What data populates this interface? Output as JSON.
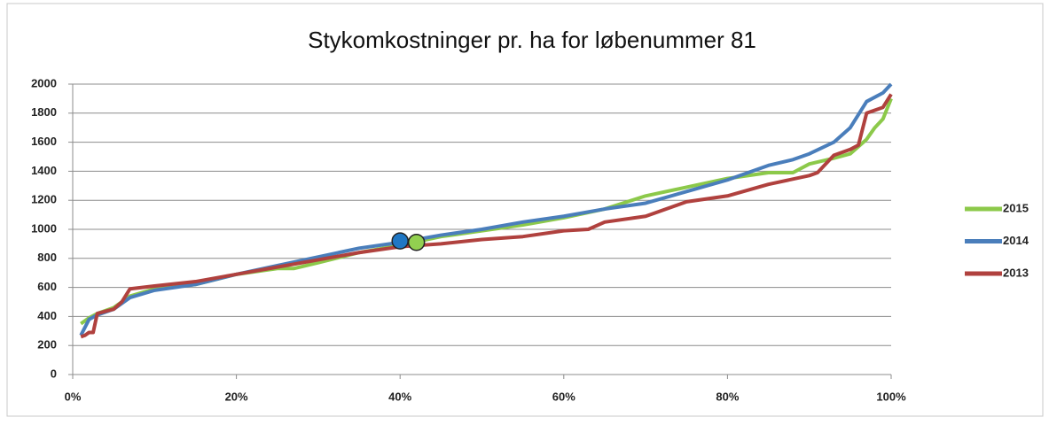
{
  "chart_data": {
    "type": "line",
    "title": "Stykomkostninger pr. ha for løbenummer 81",
    "xlim": [
      0,
      100
    ],
    "xticks": [
      {
        "value": 0,
        "label": "0%"
      },
      {
        "value": 20,
        "label": "20%"
      },
      {
        "value": 40,
        "label": "40%"
      },
      {
        "value": 60,
        "label": "60%"
      },
      {
        "value": 80,
        "label": "80%"
      },
      {
        "value": 100,
        "label": "100%"
      }
    ],
    "ylim": [
      0,
      2000
    ],
    "yticks": [
      0,
      200,
      400,
      600,
      800,
      1000,
      1200,
      1400,
      1600,
      1800,
      2000
    ],
    "grid": true,
    "legend": "right",
    "series": [
      {
        "name": "2015",
        "color": "#8cc94a",
        "x": [
          1,
          2,
          3,
          5,
          7,
          10,
          15,
          20,
          25,
          27,
          30,
          35,
          40,
          45,
          50,
          55,
          60,
          65,
          70,
          75,
          80,
          85,
          88,
          90,
          93,
          95,
          97,
          98,
          99,
          100
        ],
        "values": [
          350,
          390,
          420,
          460,
          540,
          590,
          620,
          690,
          730,
          730,
          770,
          840,
          890,
          950,
          990,
          1030,
          1080,
          1140,
          1230,
          1290,
          1350,
          1390,
          1390,
          1450,
          1490,
          1520,
          1620,
          1700,
          1760,
          1900
        ]
      },
      {
        "name": "2014",
        "color": "#4a7ebb",
        "x": [
          1,
          2,
          3,
          5,
          7,
          10,
          15,
          20,
          25,
          30,
          35,
          40,
          45,
          50,
          55,
          60,
          65,
          70,
          75,
          80,
          85,
          88,
          90,
          93,
          95,
          97,
          99,
          100
        ],
        "values": [
          270,
          380,
          410,
          450,
          530,
          580,
          620,
          690,
          750,
          810,
          870,
          910,
          960,
          1000,
          1050,
          1090,
          1140,
          1180,
          1260,
          1340,
          1440,
          1480,
          1520,
          1600,
          1700,
          1880,
          1940,
          2000
        ]
      },
      {
        "name": "2013",
        "color": "#b0413e",
        "x": [
          1,
          1.5,
          2,
          2.5,
          3,
          5,
          6,
          7,
          10,
          15,
          20,
          25,
          30,
          35,
          40,
          45,
          50,
          55,
          60,
          63,
          65,
          70,
          75,
          80,
          85,
          90,
          91,
          93,
          95,
          96,
          97,
          99,
          100
        ],
        "values": [
          260,
          270,
          290,
          290,
          420,
          450,
          500,
          590,
          610,
          640,
          690,
          740,
          790,
          840,
          880,
          900,
          930,
          950,
          990,
          1000,
          1050,
          1090,
          1190,
          1230,
          1310,
          1370,
          1390,
          1510,
          1550,
          1580,
          1800,
          1840,
          1930
        ]
      }
    ],
    "markers": [
      {
        "x": 40,
        "y": 920,
        "color": "#1f77c4"
      },
      {
        "x": 42,
        "y": 910,
        "color": "#92d050"
      }
    ]
  }
}
